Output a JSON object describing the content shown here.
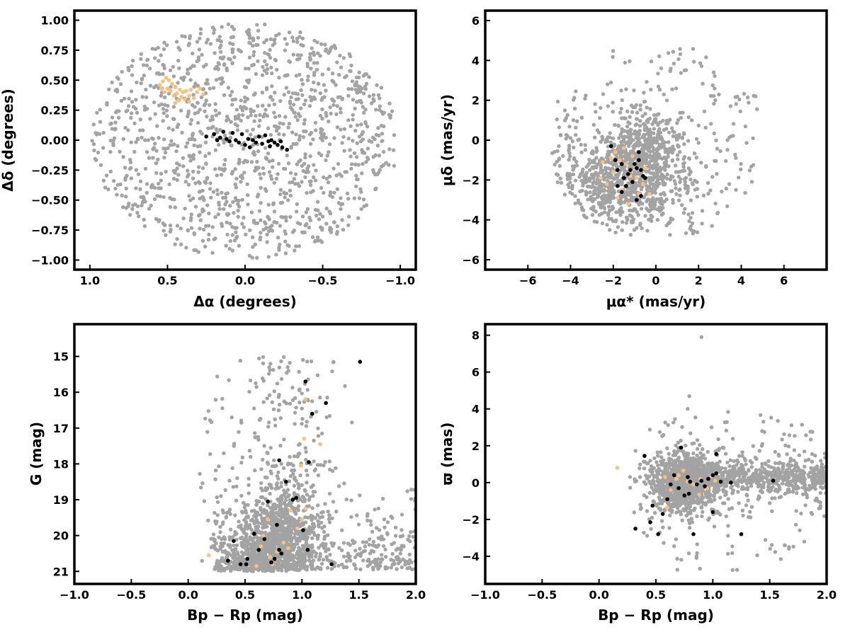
{
  "colors": {
    "field": "#a3a3a3",
    "highlight_orange": "#f9c07e",
    "highlight_black": "#000000",
    "frame": "#000000"
  },
  "chart_data": [
    {
      "id": "sky",
      "type": "scatter",
      "xlabel": "Δα (degrees)",
      "ylabel": "Δδ (degrees)",
      "xlim": [
        1.1,
        -1.1
      ],
      "ylim": [
        -1.08,
        1.08
      ],
      "x_inverted": true,
      "xticks": [
        1.0,
        0.5,
        0.0,
        -0.5,
        -1.0
      ],
      "xtick_labels": [
        "1.0",
        "0.5",
        "0.0",
        "−0.5",
        "−1.0"
      ],
      "yticks": [
        1.0,
        0.75,
        0.5,
        0.25,
        0.0,
        -0.25,
        -0.5,
        -0.75,
        -1.0
      ],
      "ytick_labels": [
        "1.00",
        "0.75",
        "0.50",
        "0.25",
        "0.00",
        "−0.25",
        "−0.50",
        "−0.75",
        "−1.00"
      ],
      "grid": false,
      "background_field": {
        "shape": "disk",
        "center": [
          0.0,
          0.0
        ],
        "radius": 1.0,
        "approx_count": 1300
      },
      "series": [
        {
          "color": "#f9c07e",
          "points": [
            [
              0.51,
              0.52
            ],
            [
              0.49,
              0.5
            ],
            [
              0.53,
              0.49
            ],
            [
              0.47,
              0.47
            ],
            [
              0.55,
              0.46
            ],
            [
              0.45,
              0.44
            ],
            [
              0.5,
              0.43
            ],
            [
              0.42,
              0.42
            ],
            [
              0.48,
              0.41
            ],
            [
              0.52,
              0.4
            ],
            [
              0.4,
              0.4
            ],
            [
              0.44,
              0.39
            ],
            [
              0.38,
              0.41
            ],
            [
              0.35,
              0.42
            ],
            [
              0.46,
              0.37
            ],
            [
              0.41,
              0.36
            ],
            [
              0.36,
              0.37
            ],
            [
              0.39,
              0.34
            ],
            [
              0.43,
              0.33
            ],
            [
              0.33,
              0.35
            ],
            [
              0.36,
              0.32
            ],
            [
              0.31,
              0.4
            ],
            [
              0.27,
              0.38
            ],
            [
              0.45,
              0.31
            ],
            [
              0.54,
              0.43
            ],
            [
              0.29,
              0.43
            ]
          ]
        },
        {
          "color": "#000000",
          "points": [
            [
              0.25,
              0.03
            ],
            [
              0.2,
              0.05
            ],
            [
              0.16,
              0.02
            ],
            [
              0.14,
              0.07
            ],
            [
              0.18,
              0.0
            ],
            [
              0.12,
              0.01
            ],
            [
              0.1,
              -0.01
            ],
            [
              0.08,
              0.06
            ],
            [
              0.06,
              0.0
            ],
            [
              0.04,
              -0.02
            ],
            [
              0.02,
              0.05
            ],
            [
              0.0,
              -0.04
            ],
            [
              -0.02,
              0.01
            ],
            [
              -0.03,
              -0.06
            ],
            [
              -0.05,
              0.0
            ],
            [
              -0.07,
              -0.02
            ],
            [
              -0.09,
              0.03
            ],
            [
              -0.11,
              -0.03
            ],
            [
              -0.13,
              0.04
            ],
            [
              -0.15,
              -0.01
            ],
            [
              -0.16,
              -0.05
            ],
            [
              -0.19,
              -0.02
            ],
            [
              -0.21,
              -0.04
            ],
            [
              -0.24,
              -0.06
            ],
            [
              -0.27,
              -0.08
            ],
            [
              -0.23,
              -0.01
            ],
            [
              -0.17,
              0.0
            ]
          ]
        }
      ]
    },
    {
      "id": "proper-motion",
      "type": "scatter",
      "xlabel": "μα* (mas/yr)",
      "ylabel": "μδ (mas/yr)",
      "xlim": [
        -8.0,
        8.0
      ],
      "ylim": [
        -6.5,
        6.5
      ],
      "xticks": [
        -6,
        -4,
        -2,
        0,
        2,
        4,
        6
      ],
      "xtick_labels": [
        "−6",
        "−4",
        "−2",
        "0",
        "2",
        "4",
        "6"
      ],
      "yticks": [
        6,
        4,
        2,
        0,
        -2,
        -4,
        -6
      ],
      "ytick_labels": [
        "6",
        "4",
        "2",
        "0",
        "−2",
        "−4",
        "−6"
      ],
      "grid": false,
      "background_field": {
        "approx_count": 1300,
        "range_x": [
          -5.2,
          5.0
        ],
        "range_y": [
          -5.0,
          5.0
        ]
      },
      "series": [
        {
          "color": "#f9c07e",
          "points": [
            [
              -2.6,
              -1.9
            ],
            [
              -2.3,
              -2.2
            ],
            [
              -2.0,
              -1.6
            ],
            [
              -1.8,
              -2.9
            ],
            [
              -1.6,
              -2.5
            ],
            [
              -1.4,
              -1.2
            ],
            [
              -1.2,
              -1.8
            ],
            [
              -1.0,
              -1.3
            ],
            [
              -0.8,
              -2.7
            ],
            [
              -0.6,
              -2.2
            ],
            [
              -0.3,
              -2.7
            ],
            [
              -2.1,
              -0.9
            ],
            [
              -1.9,
              -0.6
            ],
            [
              -1.5,
              -0.4
            ],
            [
              -1.1,
              -0.8
            ],
            [
              -0.5,
              -1.4
            ],
            [
              -2.5,
              -1.1
            ],
            [
              -1.3,
              -3.2
            ],
            [
              -0.9,
              -1.9
            ],
            [
              -1.7,
              -1.0
            ]
          ]
        },
        {
          "color": "#000000",
          "points": [
            [
              -2.1,
              -0.3
            ],
            [
              -1.9,
              -1.0
            ],
            [
              -1.8,
              -1.5
            ],
            [
              -1.8,
              -2.3
            ],
            [
              -1.6,
              -1.2
            ],
            [
              -1.5,
              -1.9
            ],
            [
              -1.4,
              -2.3
            ],
            [
              -1.3,
              -1.7
            ],
            [
              -1.1,
              -2.1
            ],
            [
              -1.0,
              -1.2
            ],
            [
              -0.9,
              -1.4
            ],
            [
              -0.8,
              -0.6
            ],
            [
              -0.8,
              -1.0
            ],
            [
              -0.7,
              -1.5
            ],
            [
              -0.9,
              -3.0
            ],
            [
              -0.7,
              -2.8
            ],
            [
              -0.6,
              -1.8
            ],
            [
              -0.5,
              -1.9
            ],
            [
              -1.2,
              -1.5
            ],
            [
              -1.6,
              -2.6
            ]
          ]
        }
      ]
    },
    {
      "id": "cmd",
      "type": "scatter",
      "xlabel": "Bp − Rp (mag)",
      "ylabel": "G (mag)",
      "xlim": [
        -1.0,
        2.0
      ],
      "ylim": [
        21.35,
        14.1
      ],
      "y_inverted": true,
      "xticks": [
        -1.0,
        -0.5,
        0.0,
        0.5,
        1.0,
        1.5,
        2.0
      ],
      "xtick_labels": [
        "−1.0",
        "−0.5",
        "0.0",
        "0.5",
        "1.0",
        "1.5",
        "2.0"
      ],
      "yticks": [
        21,
        20,
        19,
        18,
        17,
        16,
        15
      ],
      "ytick_labels": [
        "21",
        "20",
        "19",
        "18",
        "17",
        "16",
        "15"
      ],
      "grid": false,
      "series": [
        {
          "color": "#f9c07e",
          "points": [
            [
              0.18,
              20.55
            ],
            [
              0.6,
              20.85
            ],
            [
              0.64,
              20.3
            ],
            [
              0.66,
              20.0
            ],
            [
              0.7,
              19.55
            ],
            [
              0.72,
              20.6
            ],
            [
              0.78,
              20.45
            ],
            [
              0.84,
              20.2
            ],
            [
              0.9,
              19.3
            ],
            [
              0.96,
              19.8
            ],
            [
              1.0,
              19.55
            ],
            [
              1.03,
              19.25
            ],
            [
              0.99,
              18.05
            ],
            [
              1.02,
              17.3
            ],
            [
              1.03,
              16.2
            ],
            [
              1.16,
              17.45
            ],
            [
              0.74,
              20.8
            ],
            [
              0.88,
              20.35
            ]
          ]
        },
        {
          "color": "#000000",
          "points": [
            [
              0.35,
              20.7
            ],
            [
              0.4,
              20.15
            ],
            [
              0.46,
              20.8
            ],
            [
              0.51,
              20.8
            ],
            [
              0.52,
              20.65
            ],
            [
              0.58,
              19.95
            ],
            [
              0.62,
              20.4
            ],
            [
              0.67,
              20.1
            ],
            [
              0.7,
              19.05
            ],
            [
              0.73,
              20.75
            ],
            [
              0.76,
              20.65
            ],
            [
              0.8,
              20.4
            ],
            [
              0.78,
              19.7
            ],
            [
              0.82,
              20.5
            ],
            [
              0.86,
              18.5
            ],
            [
              0.92,
              19.0
            ],
            [
              0.95,
              18.95
            ],
            [
              0.8,
              17.9
            ],
            [
              1.01,
              19.85
            ],
            [
              1.06,
              17.95
            ],
            [
              1.09,
              16.6
            ],
            [
              1.03,
              15.7
            ],
            [
              1.21,
              16.3
            ],
            [
              1.26,
              20.8
            ],
            [
              1.51,
              15.15
            ],
            [
              1.05,
              20.4
            ]
          ]
        }
      ]
    },
    {
      "id": "parallax",
      "type": "scatter",
      "xlabel": "Bp − Rp (mag)",
      "ylabel": "ϖ (mas)",
      "xlim": [
        -1.0,
        2.0
      ],
      "ylim": [
        -5.5,
        8.6
      ],
      "xticks": [
        -1.0,
        -0.5,
        0.0,
        0.5,
        1.0,
        1.5,
        2.0
      ],
      "xtick_labels": [
        "−1.0",
        "−0.5",
        "0.0",
        "0.5",
        "1.0",
        "1.5",
        "2.0"
      ],
      "yticks": [
        8,
        6,
        4,
        2,
        0,
        -2,
        -4
      ],
      "ytick_labels": [
        "8",
        "6",
        "4",
        "2",
        "0",
        "−2",
        "−4"
      ],
      "grid": false,
      "series": [
        {
          "color": "#f9c07e",
          "points": [
            [
              0.16,
              0.8
            ],
            [
              0.58,
              0.3
            ],
            [
              0.63,
              -0.4
            ],
            [
              0.68,
              0.2
            ],
            [
              0.74,
              0.65
            ],
            [
              0.78,
              0.05
            ],
            [
              0.83,
              -0.1
            ],
            [
              0.89,
              0.2
            ],
            [
              0.95,
              -0.3
            ],
            [
              0.99,
              0.35
            ],
            [
              1.02,
              0.1
            ],
            [
              0.88,
              -0.65
            ],
            [
              0.6,
              -1.35
            ],
            [
              0.7,
              0.4
            ]
          ]
        },
        {
          "color": "#000000",
          "points": [
            [
              0.32,
              -2.5
            ],
            [
              0.4,
              1.45
            ],
            [
              0.45,
              -2.15
            ],
            [
              0.47,
              -1.25
            ],
            [
              0.52,
              -2.8
            ],
            [
              0.56,
              -1.7
            ],
            [
              0.6,
              -0.9
            ],
            [
              0.63,
              -0.1
            ],
            [
              0.66,
              0.4
            ],
            [
              0.7,
              -0.3
            ],
            [
              0.72,
              1.9
            ],
            [
              0.75,
              -0.7
            ],
            [
              0.78,
              0.3
            ],
            [
              0.8,
              0.05
            ],
            [
              0.83,
              -2.8
            ],
            [
              0.86,
              -0.1
            ],
            [
              0.9,
              0.1
            ],
            [
              0.93,
              -0.2
            ],
            [
              0.96,
              0.2
            ],
            [
              1.0,
              0.4
            ],
            [
              1.03,
              0.5
            ],
            [
              1.07,
              0.05
            ],
            [
              1.0,
              -1.6
            ],
            [
              1.16,
              0.0
            ],
            [
              1.25,
              -2.8
            ],
            [
              1.53,
              0.1
            ],
            [
              1.03,
              1.55
            ],
            [
              0.79,
              -0.6
            ]
          ]
        }
      ]
    }
  ]
}
